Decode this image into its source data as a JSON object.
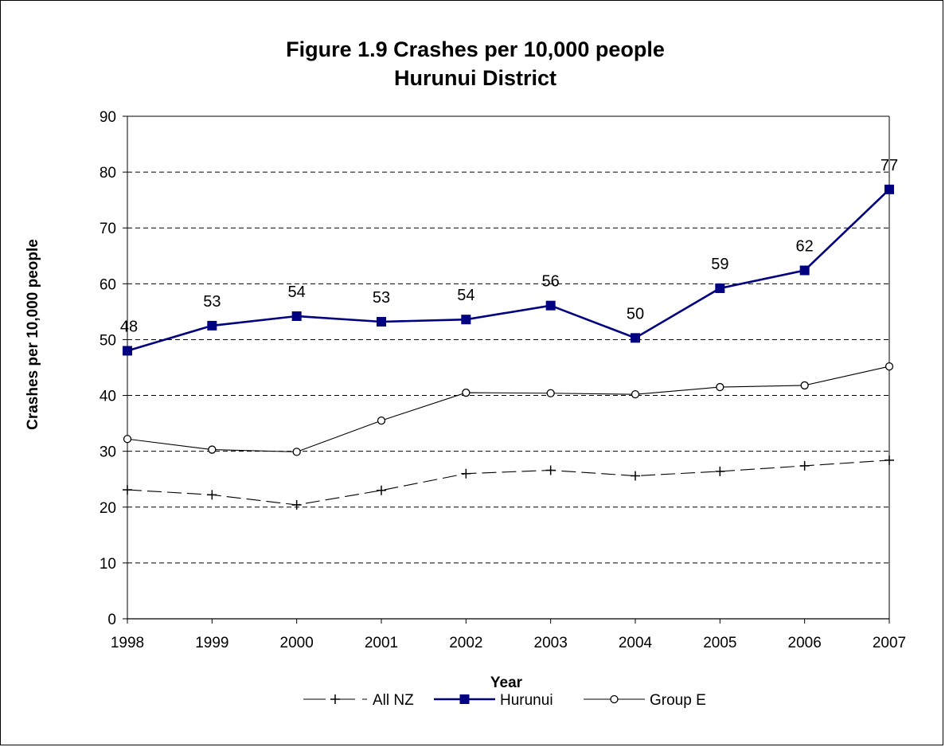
{
  "chart_data": {
    "type": "line",
    "title": "Figure 1.9 Crashes per 10,000 people",
    "subtitle": "Hurunui District",
    "xlabel": "Year",
    "ylabel": "Crashes per 10,000 people",
    "categories": [
      "1998",
      "1999",
      "2000",
      "2001",
      "2002",
      "2003",
      "2004",
      "2005",
      "2006",
      "2007"
    ],
    "ylim": [
      0,
      90
    ],
    "yticks": [
      "0",
      "10",
      "20",
      "30",
      "40",
      "50",
      "60",
      "70",
      "80",
      "90"
    ],
    "grid": "horizontal dashed",
    "legend_position": "bottom",
    "series": [
      {
        "name": "All NZ",
        "marker": "plus",
        "line": "dashed",
        "color": "#000000",
        "values": [
          23.1,
          22.2,
          20.4,
          23.0,
          26.0,
          26.6,
          25.6,
          26.4,
          27.4,
          28.4
        ]
      },
      {
        "name": "Hurunui",
        "marker": "square",
        "line": "solid",
        "color": "#000080",
        "values": [
          48.0,
          52.5,
          54.2,
          53.2,
          53.6,
          56.1,
          50.3,
          59.2,
          62.4,
          76.9
        ],
        "labels": [
          "48",
          "53",
          "54",
          "53",
          "54",
          "56",
          "50",
          "59",
          "62",
          "77"
        ]
      },
      {
        "name": "Group E",
        "marker": "circle",
        "line": "solid",
        "color": "#000000",
        "values": [
          32.2,
          30.3,
          29.9,
          35.5,
          40.5,
          40.4,
          40.2,
          41.5,
          41.8,
          45.2
        ]
      }
    ]
  }
}
